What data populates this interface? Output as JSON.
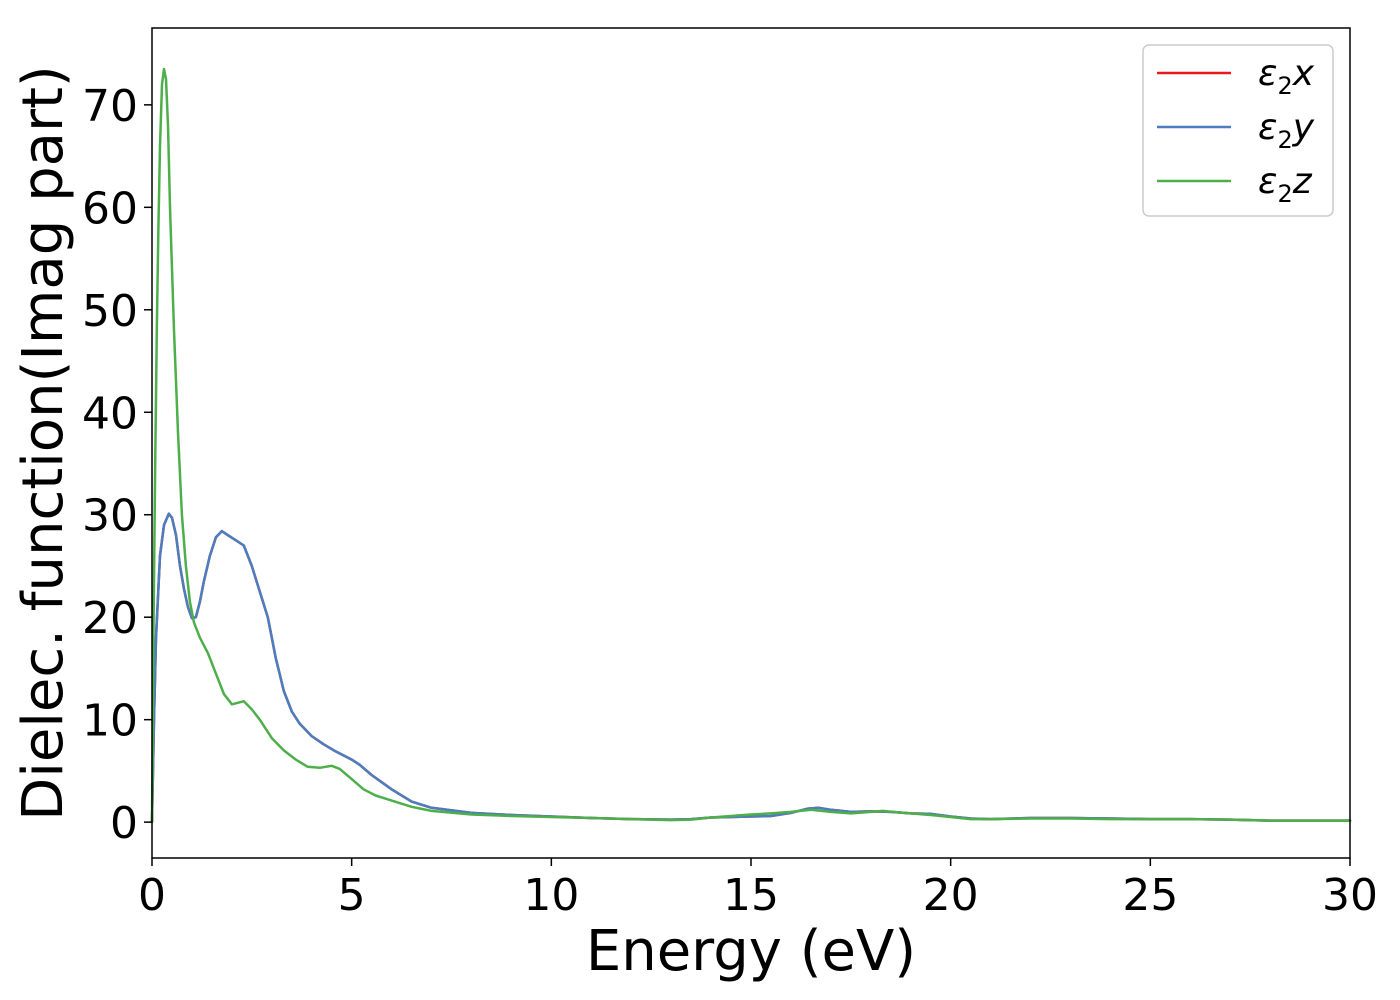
{
  "chart_data": {
    "type": "line",
    "xlabel": "Energy (eV)",
    "ylabel": "Dielec. function(Imag part)",
    "xlim": [
      0,
      30
    ],
    "ylim": [
      -3.5,
      77.5
    ],
    "xticks": [
      0,
      5,
      10,
      15,
      20,
      25,
      30
    ],
    "yticks": [
      0,
      10,
      20,
      30,
      40,
      50,
      60,
      70
    ],
    "grid": false,
    "legend": {
      "placement": "top-right"
    },
    "series": [
      {
        "name": "ε2x",
        "sub": "2",
        "base": "ε",
        "suffix": "x",
        "color": "#e41a1c",
        "points": [
          [
            0,
            0
          ],
          [
            0.05,
            10
          ],
          [
            0.1,
            18
          ],
          [
            0.2,
            26
          ],
          [
            0.3,
            29
          ],
          [
            0.42,
            30.1
          ],
          [
            0.5,
            29.7
          ],
          [
            0.6,
            28
          ],
          [
            0.7,
            25
          ],
          [
            0.8,
            22.8
          ],
          [
            0.9,
            21
          ],
          [
            1.0,
            19.9
          ],
          [
            1.1,
            20
          ],
          [
            1.2,
            21.5
          ],
          [
            1.3,
            23.5
          ],
          [
            1.45,
            26
          ],
          [
            1.6,
            27.8
          ],
          [
            1.75,
            28.4
          ],
          [
            1.9,
            28
          ],
          [
            2.1,
            27.5
          ],
          [
            2.3,
            27
          ],
          [
            2.5,
            25
          ],
          [
            2.7,
            22.5
          ],
          [
            2.9,
            20
          ],
          [
            3.1,
            16
          ],
          [
            3.3,
            12.8
          ],
          [
            3.5,
            10.8
          ],
          [
            3.7,
            9.6
          ],
          [
            4.0,
            8.4
          ],
          [
            4.3,
            7.6
          ],
          [
            4.6,
            6.9
          ],
          [
            5.0,
            6.1
          ],
          [
            5.2,
            5.6
          ],
          [
            5.5,
            4.6
          ],
          [
            6.0,
            3.2
          ],
          [
            6.5,
            2.0
          ],
          [
            7.0,
            1.4
          ],
          [
            8.0,
            0.9
          ],
          [
            9.0,
            0.7
          ],
          [
            10,
            0.55
          ],
          [
            11,
            0.4
          ],
          [
            12,
            0.3
          ],
          [
            13,
            0.25
          ],
          [
            13.5,
            0.3
          ],
          [
            14,
            0.45
          ],
          [
            15,
            0.55
          ],
          [
            15.5,
            0.6
          ],
          [
            16.0,
            0.9
          ],
          [
            16.4,
            1.3
          ],
          [
            16.7,
            1.4
          ],
          [
            17.0,
            1.2
          ],
          [
            17.5,
            1.0
          ],
          [
            18.0,
            1.05
          ],
          [
            18.5,
            1.0
          ],
          [
            19,
            0.85
          ],
          [
            19.5,
            0.8
          ],
          [
            20,
            0.55
          ],
          [
            20.5,
            0.35
          ],
          [
            21,
            0.3
          ],
          [
            22,
            0.4
          ],
          [
            23,
            0.4
          ],
          [
            24,
            0.35
          ],
          [
            25,
            0.3
          ],
          [
            26,
            0.3
          ],
          [
            27,
            0.25
          ],
          [
            28,
            0.15
          ],
          [
            29,
            0.15
          ],
          [
            30,
            0.15
          ]
        ]
      },
      {
        "name": "ε2y",
        "sub": "2",
        "base": "ε",
        "suffix": "y",
        "color": "#4a7ebf",
        "points": [
          [
            0,
            0
          ],
          [
            0.05,
            10
          ],
          [
            0.1,
            18
          ],
          [
            0.2,
            26
          ],
          [
            0.3,
            29
          ],
          [
            0.42,
            30.1
          ],
          [
            0.5,
            29.7
          ],
          [
            0.6,
            28
          ],
          [
            0.7,
            25
          ],
          [
            0.8,
            22.8
          ],
          [
            0.9,
            21
          ],
          [
            1.0,
            19.9
          ],
          [
            1.1,
            20
          ],
          [
            1.2,
            21.5
          ],
          [
            1.3,
            23.5
          ],
          [
            1.45,
            26
          ],
          [
            1.6,
            27.8
          ],
          [
            1.75,
            28.4
          ],
          [
            1.9,
            28
          ],
          [
            2.1,
            27.5
          ],
          [
            2.3,
            27
          ],
          [
            2.5,
            25
          ],
          [
            2.7,
            22.5
          ],
          [
            2.9,
            20
          ],
          [
            3.1,
            16
          ],
          [
            3.3,
            12.8
          ],
          [
            3.5,
            10.8
          ],
          [
            3.7,
            9.6
          ],
          [
            4.0,
            8.4
          ],
          [
            4.3,
            7.6
          ],
          [
            4.6,
            6.9
          ],
          [
            5.0,
            6.1
          ],
          [
            5.2,
            5.6
          ],
          [
            5.5,
            4.6
          ],
          [
            6.0,
            3.2
          ],
          [
            6.5,
            2.0
          ],
          [
            7.0,
            1.4
          ],
          [
            8.0,
            0.9
          ],
          [
            9.0,
            0.7
          ],
          [
            10,
            0.55
          ],
          [
            11,
            0.4
          ],
          [
            12,
            0.3
          ],
          [
            13,
            0.25
          ],
          [
            13.5,
            0.3
          ],
          [
            14,
            0.45
          ],
          [
            15,
            0.55
          ],
          [
            15.5,
            0.6
          ],
          [
            16.0,
            0.9
          ],
          [
            16.4,
            1.3
          ],
          [
            16.7,
            1.4
          ],
          [
            17.0,
            1.2
          ],
          [
            17.5,
            1.0
          ],
          [
            18.0,
            1.05
          ],
          [
            18.5,
            1.0
          ],
          [
            19,
            0.85
          ],
          [
            19.5,
            0.8
          ],
          [
            20,
            0.55
          ],
          [
            20.5,
            0.35
          ],
          [
            21,
            0.3
          ],
          [
            22,
            0.4
          ],
          [
            23,
            0.4
          ],
          [
            24,
            0.35
          ],
          [
            25,
            0.3
          ],
          [
            26,
            0.3
          ],
          [
            27,
            0.25
          ],
          [
            28,
            0.15
          ],
          [
            29,
            0.15
          ],
          [
            30,
            0.15
          ]
        ]
      },
      {
        "name": "ε2z",
        "sub": "2",
        "base": "ε",
        "suffix": "z",
        "color": "#4daf4a",
        "points": [
          [
            0,
            0
          ],
          [
            0.04,
            20
          ],
          [
            0.08,
            35
          ],
          [
            0.12,
            48
          ],
          [
            0.16,
            58
          ],
          [
            0.2,
            66
          ],
          [
            0.25,
            72
          ],
          [
            0.3,
            73.5
          ],
          [
            0.35,
            72.5
          ],
          [
            0.4,
            68
          ],
          [
            0.45,
            60
          ],
          [
            0.55,
            48
          ],
          [
            0.65,
            38
          ],
          [
            0.75,
            30
          ],
          [
            0.85,
            25
          ],
          [
            0.95,
            21.5
          ],
          [
            1.05,
            19.5
          ],
          [
            1.2,
            18
          ],
          [
            1.4,
            16.5
          ],
          [
            1.6,
            14.5
          ],
          [
            1.8,
            12.5
          ],
          [
            2.0,
            11.5
          ],
          [
            2.1,
            11.6
          ],
          [
            2.3,
            11.8
          ],
          [
            2.5,
            11.0
          ],
          [
            2.7,
            10.0
          ],
          [
            3.0,
            8.2
          ],
          [
            3.3,
            7.0
          ],
          [
            3.6,
            6.1
          ],
          [
            3.9,
            5.4
          ],
          [
            4.2,
            5.3
          ],
          [
            4.5,
            5.5
          ],
          [
            4.7,
            5.2
          ],
          [
            5.0,
            4.2
          ],
          [
            5.3,
            3.2
          ],
          [
            5.6,
            2.6
          ],
          [
            6.0,
            2.1
          ],
          [
            6.5,
            1.5
          ],
          [
            7.0,
            1.1
          ],
          [
            8.0,
            0.75
          ],
          [
            9.0,
            0.6
          ],
          [
            10,
            0.5
          ],
          [
            11,
            0.4
          ],
          [
            12,
            0.3
          ],
          [
            13,
            0.2
          ],
          [
            13.5,
            0.25
          ],
          [
            14,
            0.45
          ],
          [
            14.5,
            0.6
          ],
          [
            15,
            0.75
          ],
          [
            15.5,
            0.85
          ],
          [
            16,
            1.0
          ],
          [
            16.5,
            1.2
          ],
          [
            17,
            1.0
          ],
          [
            17.5,
            0.85
          ],
          [
            18,
            1.0
          ],
          [
            18.3,
            1.1
          ],
          [
            18.7,
            0.95
          ],
          [
            19,
            0.85
          ],
          [
            19.5,
            0.7
          ],
          [
            20,
            0.5
          ],
          [
            20.5,
            0.3
          ],
          [
            21,
            0.3
          ],
          [
            22,
            0.35
          ],
          [
            23,
            0.35
          ],
          [
            24,
            0.3
          ],
          [
            25,
            0.3
          ],
          [
            26,
            0.3
          ],
          [
            27,
            0.25
          ],
          [
            28,
            0.15
          ],
          [
            29,
            0.15
          ],
          [
            30,
            0.15
          ]
        ]
      }
    ]
  }
}
